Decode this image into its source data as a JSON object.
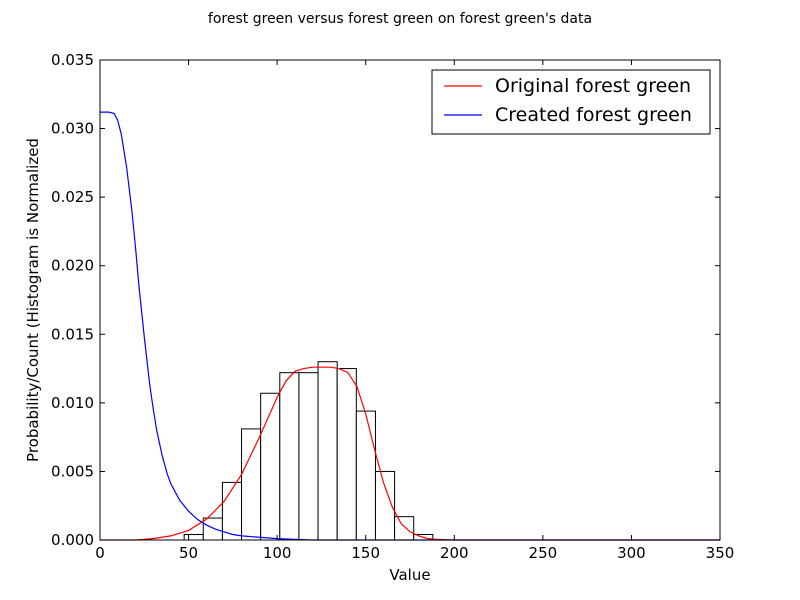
{
  "chart_data": {
    "type": "bar",
    "title": "forest green versus forest green on forest green's data",
    "xlabel": "Value",
    "ylabel": "Probability/Count (Histogram is Normalized",
    "xlim": [
      0,
      350
    ],
    "ylim": [
      0,
      0.035
    ],
    "xticks": [
      0,
      50,
      100,
      150,
      200,
      250,
      300,
      350
    ],
    "xtick_labels": [
      "0",
      "50",
      "100",
      "150",
      "200",
      "250",
      "300",
      "350"
    ],
    "yticks": [
      0,
      0.005,
      0.01,
      0.015,
      0.02,
      0.025,
      0.03,
      0.035
    ],
    "ytick_labels": [
      "0.000",
      "0.005",
      "0.010",
      "0.015",
      "0.020",
      "0.025",
      "0.030",
      "0.035"
    ],
    "grid": false,
    "legend_position": "top-right",
    "histogram": {
      "bin_edges": [
        47.5,
        58.3,
        69.1,
        79.9,
        90.7,
        101.5,
        112.3,
        123.1,
        133.9,
        144.7,
        155.5,
        166.3,
        177.1,
        187.9
      ],
      "values": [
        0.0004,
        0.0016,
        0.0042,
        0.0081,
        0.0107,
        0.0122,
        0.0122,
        0.013,
        0.0125,
        0.0094,
        0.005,
        0.0017,
        0.0004
      ],
      "fill": "#ffffff",
      "edge_color": "#000000"
    },
    "series": [
      {
        "name": "Original forest green",
        "type": "line",
        "color": "#ff0000",
        "x": [
          0,
          10,
          20,
          30,
          40,
          50,
          60,
          70,
          80,
          90,
          100,
          105,
          110,
          115,
          120,
          125,
          130,
          135,
          140,
          145,
          150,
          155,
          160,
          165,
          170,
          175,
          180,
          185,
          190,
          200,
          210,
          220,
          230,
          250,
          300,
          350
        ],
        "y": [
          0,
          0,
          0,
          0.0001,
          0.0003,
          0.0007,
          0.0015,
          0.0028,
          0.0048,
          0.0075,
          0.0104,
          0.0116,
          0.0123,
          0.0125,
          0.0126,
          0.0126,
          0.0126,
          0.0125,
          0.0122,
          0.0112,
          0.0092,
          0.0066,
          0.0042,
          0.0024,
          0.0012,
          0.0006,
          0.0003,
          0.0001,
          5e-05,
          0,
          0,
          0,
          0,
          0,
          0,
          0
        ]
      },
      {
        "name": "Created forest green",
        "type": "line",
        "color": "#0000ff",
        "x": [
          0,
          5,
          8,
          10,
          12,
          15,
          18,
          20,
          22,
          25,
          28,
          30,
          32,
          35,
          38,
          40,
          45,
          50,
          55,
          60,
          65,
          70,
          75,
          80,
          90,
          100,
          110,
          120,
          140,
          160,
          200,
          250,
          300,
          350
        ],
        "y": [
          0.0312,
          0.0312,
          0.0311,
          0.0306,
          0.0296,
          0.0272,
          0.024,
          0.0214,
          0.0185,
          0.0148,
          0.0114,
          0.0096,
          0.008,
          0.0062,
          0.0048,
          0.0041,
          0.0029,
          0.0021,
          0.0015,
          0.0011,
          0.0008,
          0.0006,
          0.0004,
          0.0003,
          0.0002,
          0.0001,
          5e-05,
          0,
          0,
          0,
          0,
          0,
          0,
          0
        ]
      }
    ]
  }
}
